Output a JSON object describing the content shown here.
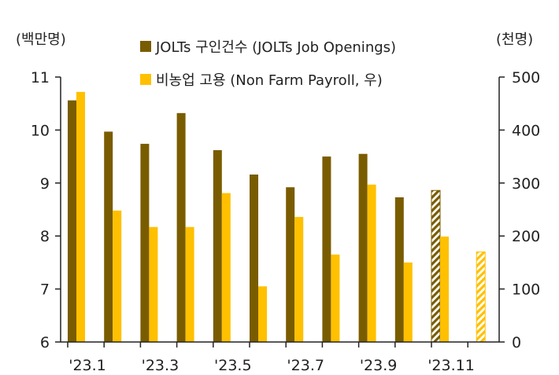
{
  "chart_data": {
    "type": "bar",
    "left_axis_unit": "(백만명)",
    "right_axis_unit": "(천명)",
    "x_tick_labels": [
      "'23.1",
      "'23.3",
      "'23.5",
      "'23.7",
      "'23.9",
      "'23.11"
    ],
    "categories": [
      "'23.1",
      "'23.2",
      "'23.3",
      "'23.4",
      "'23.5",
      "'23.6",
      "'23.7",
      "'23.8",
      "'23.9",
      "'23.10",
      "'23.11",
      "'23.12"
    ],
    "left_axis": {
      "min": 6,
      "max": 11,
      "ticks": [
        6,
        7,
        8,
        9,
        10,
        11
      ]
    },
    "right_axis": {
      "min": 0,
      "max": 500,
      "ticks": [
        0,
        100,
        200,
        300,
        400,
        500
      ]
    },
    "series": [
      {
        "name": "JOLTs 구인건수 (JOLTs Job Openings)",
        "axis": "left",
        "color": "#7a5c00",
        "values": [
          10.56,
          9.97,
          9.74,
          10.32,
          9.62,
          9.16,
          8.92,
          9.5,
          9.55,
          8.73,
          8.86,
          null
        ],
        "hatched": [
          false,
          false,
          false,
          false,
          false,
          false,
          false,
          false,
          false,
          false,
          true,
          false
        ]
      },
      {
        "name": "비농업 고용 (Non Farm Payroll, 우)",
        "axis": "right",
        "color": "#ffc000",
        "values": [
          472,
          248,
          217,
          217,
          281,
          105,
          236,
          165,
          297,
          150,
          199,
          170
        ],
        "hatched": [
          false,
          false,
          false,
          false,
          false,
          false,
          false,
          false,
          false,
          false,
          false,
          true
        ]
      }
    ],
    "grid": false,
    "legend_position": "top"
  }
}
